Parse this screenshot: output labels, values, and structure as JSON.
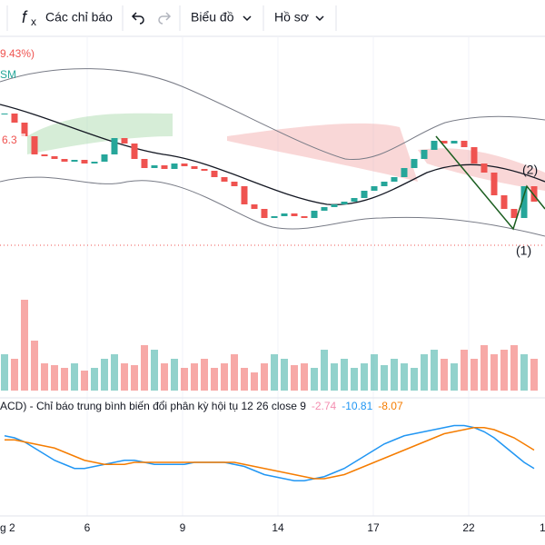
{
  "toolbar": {
    "indicators": "Các chỉ báo",
    "chart": "Biểu đồ",
    "profile": "Hồ sơ"
  },
  "price_pane": {
    "change_label": "9.43%)",
    "symbol_fragment": "SM",
    "price_tag": "6.3",
    "annotation_1": "(1)",
    "annotation_2": "(2)"
  },
  "macd_pane": {
    "title": "ACD) - Chỉ báo trung bình biến đổi phân kỳ hội tụ 12 26 close 9",
    "histogram_value": "-2.74",
    "macd_value": "-10.81",
    "signal_value": "-8.07"
  },
  "x_labels": [
    "g 2",
    "6",
    "9",
    "14",
    "17",
    "22",
    "1"
  ],
  "chart_data": {
    "type": "candlestick",
    "ylim": [
      30,
      270
    ],
    "closes": [
      175,
      165,
      150,
      130,
      128,
      125,
      122,
      124,
      120,
      122,
      130,
      148,
      142,
      125,
      115,
      118,
      114,
      120,
      117,
      114,
      112,
      105,
      100,
      95,
      75,
      70,
      60,
      62,
      65,
      62,
      60,
      68,
      72,
      75,
      78,
      82,
      90,
      95,
      100,
      105,
      115,
      125,
      135,
      145,
      142,
      145,
      138,
      120,
      110,
      85,
      70,
      60,
      95,
      78
    ],
    "volume": [
      40,
      35,
      100,
      55,
      30,
      28,
      25,
      30,
      22,
      25,
      35,
      40,
      30,
      28,
      50,
      45,
      30,
      35,
      25,
      30,
      35,
      25,
      30,
      40,
      25,
      20,
      30,
      40,
      35,
      28,
      30,
      25,
      45,
      30,
      35,
      25,
      30,
      40,
      28,
      35,
      30,
      25,
      40,
      45,
      35,
      30,
      45,
      35,
      50,
      40,
      45,
      50,
      40,
      35
    ],
    "volume_ylim": [
      0,
      120
    ],
    "macd": [
      9,
      8,
      6,
      3,
      0,
      -3,
      -5,
      -7,
      -7,
      -6,
      -5,
      -4,
      -3,
      -3,
      -4,
      -5,
      -5,
      -5,
      -5,
      -4,
      -4,
      -4,
      -4,
      -5,
      -6,
      -8,
      -10,
      -11,
      -12,
      -13,
      -13,
      -12,
      -11,
      -9,
      -7,
      -4,
      -1,
      2,
      5,
      7,
      9,
      10,
      11,
      12,
      13,
      14,
      14,
      13,
      11,
      8,
      4,
      0,
      -4,
      -7
    ],
    "signal": [
      7,
      7,
      6,
      5,
      4,
      3,
      1,
      -1,
      -3,
      -4,
      -5,
      -5,
      -5,
      -4,
      -4,
      -4,
      -4,
      -4,
      -4,
      -4,
      -4,
      -4,
      -4,
      -4,
      -5,
      -6,
      -7,
      -8,
      -9,
      -10,
      -11,
      -12,
      -12,
      -11,
      -10,
      -8,
      -6,
      -4,
      -2,
      0,
      2,
      4,
      6,
      8,
      10,
      11,
      12,
      13,
      13,
      12,
      10,
      8,
      5,
      2
    ],
    "macd_ylim": [
      -20,
      20
    ],
    "up_color": "#26a69a",
    "down_color": "#ef5350",
    "macd_color": "#2196f3",
    "signal_color": "#f57c00"
  }
}
